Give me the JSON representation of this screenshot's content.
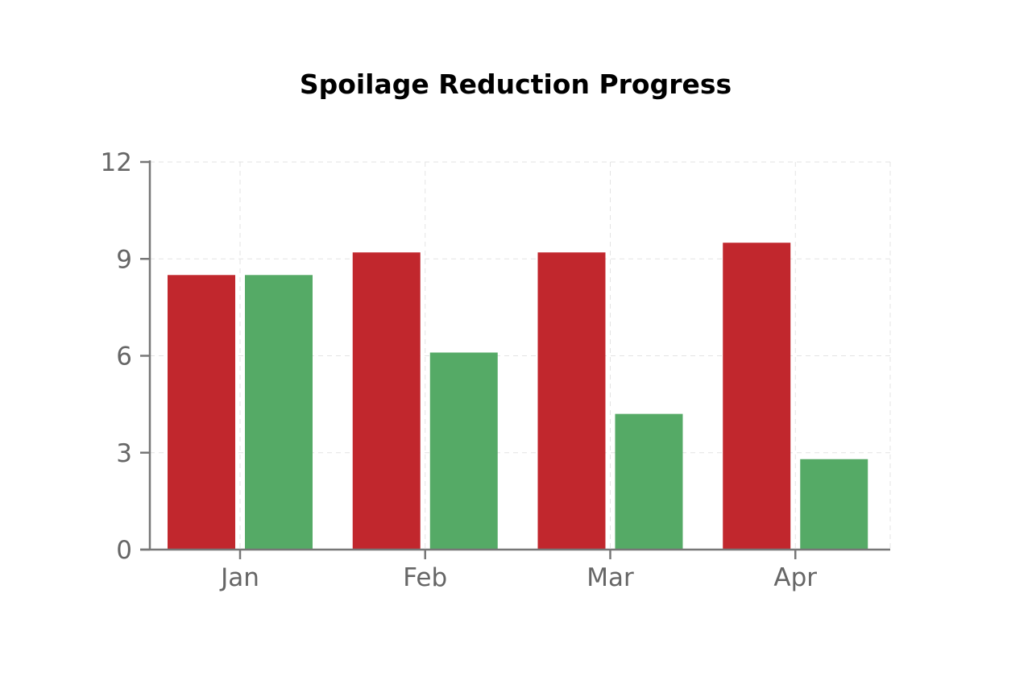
{
  "chart_data": {
    "type": "bar",
    "title": "Spoilage Reduction Progress",
    "xlabel": "",
    "ylabel": "",
    "categories": [
      "Jan",
      "Feb",
      "Mar",
      "Apr"
    ],
    "series": [
      {
        "color": "#c1272d",
        "values": [
          8.5,
          9.2,
          9.2,
          9.5
        ]
      },
      {
        "color": "#55aa66",
        "values": [
          8.5,
          6.1,
          4.2,
          2.8
        ]
      }
    ],
    "ylim": [
      0,
      12
    ],
    "yticks": [
      0,
      3,
      6,
      9,
      12
    ],
    "grid": true,
    "legend": "none"
  }
}
